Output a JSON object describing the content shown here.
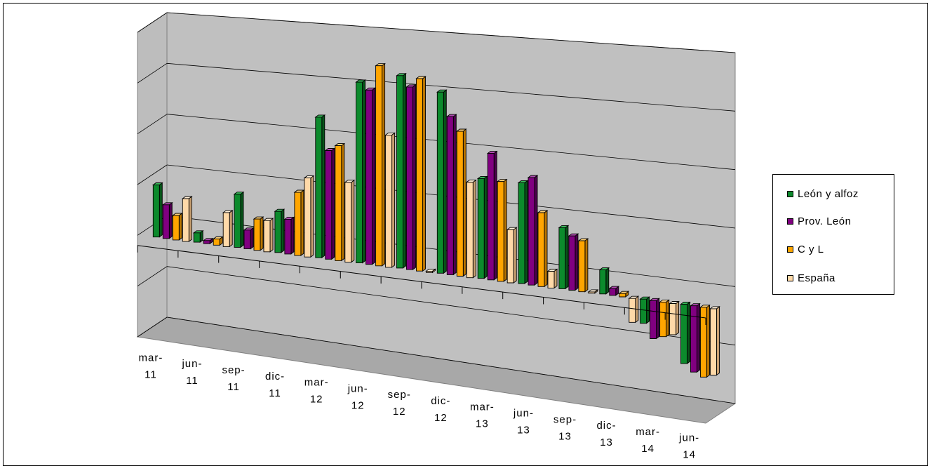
{
  "chart_data": {
    "type": "bar",
    "subtype": "3d-clustered-column",
    "title": "",
    "xlabel": "",
    "ylabel": "",
    "grid": true,
    "legend_position": "right",
    "categories": [
      [
        "mar-",
        "11"
      ],
      [
        "jun-",
        "11"
      ],
      [
        "sep-",
        "11"
      ],
      [
        "dic-",
        "11"
      ],
      [
        "mar-",
        "12"
      ],
      [
        "jun-",
        "12"
      ],
      [
        "sep-",
        "12"
      ],
      [
        "dic-",
        "12"
      ],
      [
        "mar-",
        "13"
      ],
      [
        "jun-",
        "13"
      ],
      [
        "sep-",
        "13"
      ],
      [
        "dic-",
        "13"
      ],
      [
        "mar-",
        "14"
      ],
      [
        "jun-",
        "14"
      ]
    ],
    "series": [
      {
        "name": "León y alfoz",
        "color": "#0c8a2c",
        "dark": "#075419",
        "top": "#39b85a",
        "values": [
          0.85,
          0.15,
          0.85,
          0.65,
          2.2,
          2.8,
          2.95,
          2.75,
          1.5,
          1.5,
          0.9,
          0.35,
          -0.35,
          -0.85
        ]
      },
      {
        "name": "Prov. León",
        "color": "#800080",
        "dark": "#4d004d",
        "top": "#b04db0",
        "values": [
          0.55,
          0.05,
          0.3,
          0.55,
          1.7,
          2.7,
          2.8,
          2.4,
          1.9,
          1.6,
          0.8,
          0.1,
          -0.55,
          -0.95
        ]
      },
      {
        "name": "C y L",
        "color": "#ffa500",
        "dark": "#b87400",
        "top": "#ffd27a",
        "values": [
          0.4,
          0.1,
          0.5,
          1.0,
          1.8,
          3.1,
          2.95,
          2.2,
          1.5,
          1.1,
          0.75,
          0.05,
          -0.5,
          -1.0
        ]
      },
      {
        "name": "España",
        "color": "#ffd9a8",
        "dark": "#c9a070",
        "top": "#ffefd8",
        "values": [
          0.7,
          0.55,
          0.5,
          1.25,
          1.25,
          2.05,
          0.02,
          1.45,
          0.8,
          0.25,
          0.02,
          -0.35,
          -0.45,
          -0.95
        ]
      }
    ],
    "ylim": [
      -1.5,
      3.5
    ],
    "gridline_count": 6
  }
}
